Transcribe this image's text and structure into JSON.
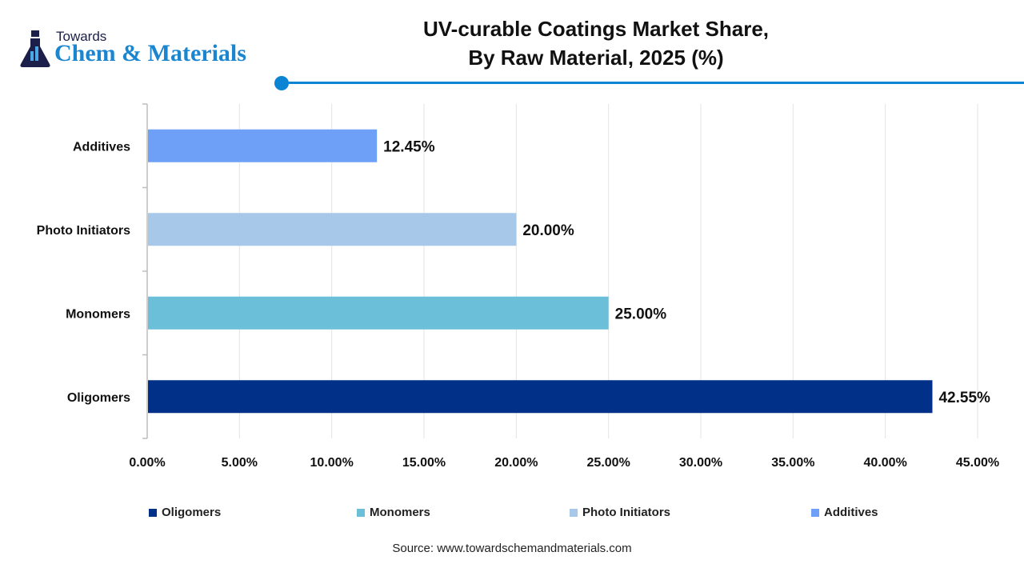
{
  "logo": {
    "top": "Towards",
    "main": "Chem & Materials"
  },
  "title": {
    "line1": "UV-curable Coatings Market Share,",
    "line2": "By Raw Material, 2025 (%)"
  },
  "accent_color": "#0b84d3",
  "chart_data": {
    "type": "bar",
    "orientation": "horizontal",
    "title": "UV-curable Coatings Market Share, By Raw Material, 2025 (%)",
    "categories": [
      "Oligomers",
      "Monomers",
      "Photo Initiators",
      "Additives"
    ],
    "values": [
      42.55,
      25.0,
      20.0,
      12.45
    ],
    "data_labels": [
      "42.55%",
      "25.00%",
      "20.00%",
      "12.45%"
    ],
    "colors": [
      "#003087",
      "#6cbfd9",
      "#a7c8e8",
      "#6fa0f7"
    ],
    "xlim": [
      0,
      45
    ],
    "x_ticks": [
      "0.00%",
      "5.00%",
      "10.00%",
      "15.00%",
      "20.00%",
      "25.00%",
      "30.00%",
      "35.00%",
      "40.00%",
      "45.00%"
    ],
    "grid": "vertical",
    "legend_position": "bottom",
    "legend": [
      "Oligomers",
      "Monomers",
      "Photo Initiators",
      "Additives"
    ]
  },
  "source": "Source: www.towardschemandmaterials.com"
}
